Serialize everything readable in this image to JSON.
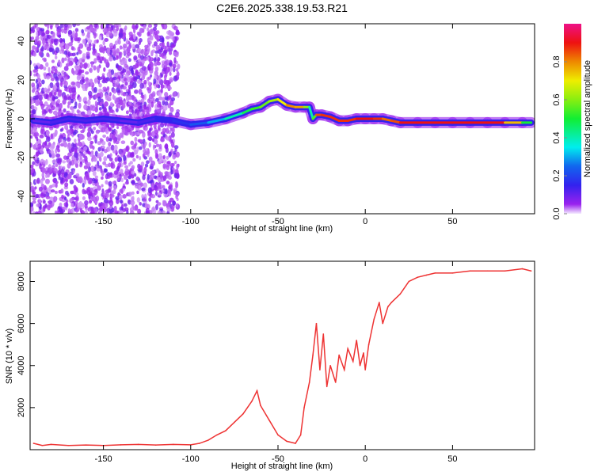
{
  "chart_data": [
    {
      "type": "heatmap",
      "title": "C2E6.2025.338.19.53.R21",
      "xlabel": "Height of straight line (km)",
      "ylabel": "Frequency (Hz)",
      "xlim": [
        -192,
        97
      ],
      "ylim": [
        -49,
        49
      ],
      "xticks": [
        -150,
        -100,
        -50,
        0,
        50
      ],
      "yticks": [
        -40,
        -20,
        0,
        20,
        40
      ],
      "colorbar": {
        "label": "Normalized spectral amplitude",
        "range": [
          0,
          1
        ],
        "ticks": [
          "0.0",
          "0.2",
          "0.4",
          "0.6",
          "0.8"
        ]
      },
      "ridge": {
        "x": [
          -190,
          -180,
          -170,
          -160,
          -150,
          -140,
          -130,
          -120,
          -110,
          -100,
          -90,
          -80,
          -70,
          -65,
          -60,
          -55,
          -50,
          -45,
          -40,
          -35,
          -32,
          -30,
          -28,
          -25,
          -20,
          -15,
          -10,
          -5,
          0,
          5,
          10,
          15,
          20,
          30,
          40,
          50,
          60,
          70,
          80,
          90,
          95
        ],
        "y": [
          -1,
          -2,
          0,
          -1,
          0,
          -1,
          -2,
          0,
          -1,
          -3,
          -2,
          0,
          3,
          5,
          6,
          9,
          10,
          7,
          6,
          6,
          6,
          0,
          2,
          2,
          1,
          -1,
          -1,
          0,
          0,
          0,
          0,
          -1,
          -2,
          -2,
          -2,
          -2,
          -2,
          -2,
          -2,
          -2,
          -2
        ],
        "amplitude": [
          0.1,
          0.1,
          0.15,
          0.1,
          0.15,
          0.1,
          0.1,
          0.15,
          0.15,
          0.2,
          0.25,
          0.35,
          0.45,
          0.5,
          0.55,
          0.6,
          0.65,
          0.75,
          0.85,
          0.7,
          0.5,
          0.3,
          0.8,
          0.9,
          0.85,
          0.9,
          0.85,
          0.9,
          0.9,
          0.9,
          0.85,
          0.8,
          0.9,
          0.9,
          0.9,
          0.9,
          0.9,
          0.9,
          0.9,
          0.6,
          0.4
        ]
      }
    },
    {
      "type": "line",
      "xlabel": "Height of straight line (km)",
      "ylabel": "SNR (10 * v/v)",
      "xlim": [
        -192,
        97
      ],
      "ylim": [
        0,
        8960
      ],
      "xticks": [
        -150,
        -100,
        -50,
        0,
        50
      ],
      "yticks": [
        2000,
        4000,
        6000,
        8000
      ],
      "color": "#ee3333",
      "x": [
        -190,
        -185,
        -180,
        -170,
        -160,
        -150,
        -140,
        -130,
        -120,
        -110,
        -100,
        -95,
        -90,
        -85,
        -80,
        -75,
        -70,
        -65,
        -62,
        -60,
        -55,
        -50,
        -45,
        -40,
        -37,
        -35,
        -32,
        -30,
        -28,
        -26,
        -24,
        -22,
        -20,
        -17,
        -15,
        -12,
        -10,
        -7,
        -5,
        -3,
        -1,
        0,
        2,
        5,
        8,
        10,
        13,
        15,
        20,
        25,
        30,
        35,
        40,
        50,
        60,
        70,
        80,
        90,
        95
      ],
      "y": [
        300,
        200,
        250,
        200,
        220,
        200,
        230,
        250,
        220,
        250,
        230,
        300,
        450,
        700,
        900,
        1300,
        1700,
        2300,
        2800,
        2100,
        1400,
        700,
        400,
        300,
        700,
        2000,
        3200,
        4500,
        6000,
        3800,
        5500,
        3000,
        4000,
        3200,
        4500,
        3800,
        4800,
        4200,
        5200,
        4000,
        4600,
        3800,
        5000,
        6200,
        7000,
        6000,
        6800,
        7000,
        7400,
        8000,
        8200,
        8300,
        8400,
        8400,
        8500,
        8500,
        8500,
        8600,
        8500
      ]
    }
  ]
}
